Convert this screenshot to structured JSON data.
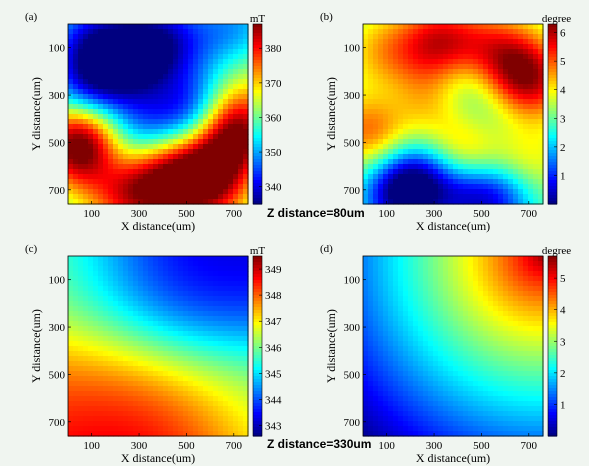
{
  "figure": {
    "z_labels": [
      "Z distance=80um",
      "Z distance=330um"
    ]
  },
  "chart_data": [
    {
      "type": "heatmap",
      "panel_label": "(a)",
      "xlabel": "X distance(um)",
      "ylabel": "Y distance(um)",
      "x_ticks": [
        100,
        300,
        500,
        700
      ],
      "y_ticks": [
        100,
        300,
        500,
        700
      ],
      "xlim": [
        0,
        760
      ],
      "ylim": [
        0,
        760
      ],
      "colorbar": {
        "unit": "mT",
        "range": [
          335,
          387
        ],
        "ticks": [
          340,
          350,
          360,
          370,
          380
        ]
      },
      "colormap": "jet",
      "blobs": [
        {
          "x": 60,
          "y": 550,
          "value": 384
        },
        {
          "x": 60,
          "y": 470,
          "value": 378
        },
        {
          "x": 420,
          "y": 640,
          "value": 376
        },
        {
          "x": 560,
          "y": 620,
          "value": 380
        },
        {
          "x": 690,
          "y": 500,
          "value": 382
        },
        {
          "x": 700,
          "y": 380,
          "value": 378
        },
        {
          "x": 720,
          "y": 150,
          "value": 370
        },
        {
          "x": 200,
          "y": 720,
          "value": 372
        },
        {
          "x": 320,
          "y": 720,
          "value": 374
        },
        {
          "x": 620,
          "y": 730,
          "value": 372
        },
        {
          "x": 100,
          "y": 260,
          "value": 338
        },
        {
          "x": 240,
          "y": 120,
          "value": 342
        },
        {
          "x": 90,
          "y": 70,
          "value": 344
        },
        {
          "x": 330,
          "y": 140,
          "value": 344
        },
        {
          "x": 540,
          "y": 380,
          "value": 338
        },
        {
          "x": 320,
          "y": 420,
          "value": 346
        },
        {
          "x": 150,
          "y": 580,
          "value": 348
        },
        {
          "x": 700,
          "y": 60,
          "value": 342
        },
        {
          "x": 430,
          "y": 50,
          "value": 345
        },
        {
          "x": 640,
          "y": 230,
          "value": 352
        }
      ],
      "baseline": 358
    },
    {
      "type": "heatmap",
      "panel_label": "(b)",
      "xlabel": "X distance(um)",
      "ylabel": "Y distance(um)",
      "x_ticks": [
        100,
        300,
        500,
        700
      ],
      "y_ticks": [
        100,
        300,
        500,
        700
      ],
      "xlim": [
        0,
        760
      ],
      "ylim": [
        0,
        760
      ],
      "colorbar": {
        "unit": "degree",
        "range": [
          0,
          6.3
        ],
        "ticks": [
          1,
          2,
          3,
          4,
          5,
          6
        ]
      },
      "colormap": "jet",
      "blobs": [
        {
          "x": 320,
          "y": 80,
          "value": 5.9
        },
        {
          "x": 90,
          "y": 120,
          "value": 4.6
        },
        {
          "x": 710,
          "y": 250,
          "value": 5.8
        },
        {
          "x": 620,
          "y": 150,
          "value": 5.0
        },
        {
          "x": 40,
          "y": 450,
          "value": 5.6
        },
        {
          "x": 430,
          "y": 560,
          "value": 5.2
        },
        {
          "x": 250,
          "y": 330,
          "value": 4.8
        },
        {
          "x": 680,
          "y": 600,
          "value": 4.6
        },
        {
          "x": 500,
          "y": 100,
          "value": 4.5
        },
        {
          "x": 150,
          "y": 720,
          "value": 0.2
        },
        {
          "x": 250,
          "y": 650,
          "value": 0.8
        },
        {
          "x": 450,
          "y": 720,
          "value": 0.7
        },
        {
          "x": 600,
          "y": 720,
          "value": 1.0
        },
        {
          "x": 440,
          "y": 220,
          "value": 2.0
        },
        {
          "x": 140,
          "y": 350,
          "value": 2.0
        },
        {
          "x": 560,
          "y": 400,
          "value": 2.5
        }
      ],
      "baseline": 3.1
    },
    {
      "type": "heatmap",
      "panel_label": "(c)",
      "xlabel": "X distance(um)",
      "ylabel": "Y distance(um)",
      "x_ticks": [
        100,
        300,
        500,
        700
      ],
      "y_ticks": [
        100,
        300,
        500,
        700
      ],
      "xlim": [
        0,
        760
      ],
      "ylim": [
        0,
        760
      ],
      "colorbar": {
        "unit": "mT",
        "range": [
          342.6,
          349.5
        ],
        "ticks": [
          343,
          344,
          345,
          346,
          347,
          348,
          349
        ]
      },
      "colormap": "jet",
      "blobs": [
        {
          "x": 380,
          "y": 140,
          "value": 342.6
        },
        {
          "x": 620,
          "y": 100,
          "value": 343.3
        },
        {
          "x": 250,
          "y": 760,
          "value": 349.3
        },
        {
          "x": 400,
          "y": 740,
          "value": 349.4
        },
        {
          "x": 60,
          "y": 560,
          "value": 348.0
        },
        {
          "x": 700,
          "y": 650,
          "value": 346.0
        },
        {
          "x": 40,
          "y": 60,
          "value": 346.2
        }
      ],
      "baseline": 345.8
    },
    {
      "type": "heatmap",
      "panel_label": "(d)",
      "xlabel": "X distance(um)",
      "ylabel": "Y distance(um)",
      "x_ticks": [
        100,
        300,
        500,
        700
      ],
      "y_ticks": [
        100,
        300,
        500,
        700
      ],
      "xlim": [
        0,
        760
      ],
      "ylim": [
        0,
        760
      ],
      "colorbar": {
        "unit": "degree",
        "range": [
          0,
          5.7
        ],
        "ticks": [
          1,
          2,
          3,
          4,
          5
        ]
      },
      "colormap": "jet",
      "gradient": {
        "high_corner": "top-right",
        "max": 5.6,
        "min": 0.1
      }
    }
  ]
}
